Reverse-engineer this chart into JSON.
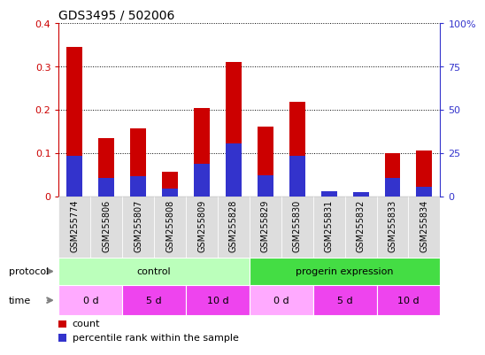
{
  "title": "GDS3495 / 502006",
  "samples": [
    "GSM255774",
    "GSM255806",
    "GSM255807",
    "GSM255808",
    "GSM255809",
    "GSM255828",
    "GSM255829",
    "GSM255830",
    "GSM255831",
    "GSM255832",
    "GSM255833",
    "GSM255834"
  ],
  "count_values": [
    0.345,
    0.135,
    0.157,
    0.058,
    0.205,
    0.31,
    0.162,
    0.218,
    0.013,
    0.01,
    0.1,
    0.106
  ],
  "percentile_values": [
    23.75,
    10.5,
    11.75,
    4.5,
    18.75,
    30.5,
    12.5,
    23.75,
    3.25,
    2.5,
    10.5,
    5.5
  ],
  "ylim_left": [
    0,
    0.4
  ],
  "ylim_right": [
    0,
    100
  ],
  "yticks_left": [
    0,
    0.1,
    0.2,
    0.3,
    0.4
  ],
  "ytick_labels_left": [
    "0",
    "0.1",
    "0.2",
    "0.3",
    "0.4"
  ],
  "yticks_right": [
    0,
    25,
    50,
    75,
    100
  ],
  "ytick_labels_right": [
    "0",
    "25",
    "50",
    "75",
    "100%"
  ],
  "bar_color_red": "#cc0000",
  "bar_color_blue": "#3333cc",
  "protocol_labels": [
    "control",
    "progerin expression"
  ],
  "protocol_color_control": "#bbffbb",
  "protocol_color_progerin": "#44dd44",
  "time_labels": [
    "0 d",
    "5 d",
    "10 d",
    "0 d",
    "5 d",
    "10 d"
  ],
  "time_colors": [
    "#ffaaff",
    "#ee44ee",
    "#ee44ee",
    "#ffaaff",
    "#ee44ee",
    "#ee44ee"
  ],
  "tick_label_color_left": "#cc0000",
  "tick_label_color_right": "#3333cc",
  "bg_color": "#ffffff",
  "bar_width": 0.5,
  "legend_count_label": "count",
  "legend_pct_label": "percentile rank within the sample",
  "label_fontsize": 8,
  "title_fontsize": 10,
  "sample_fontsize": 7
}
